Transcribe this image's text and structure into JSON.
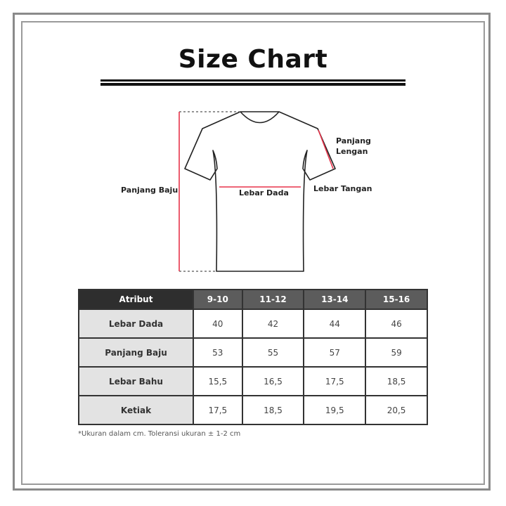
{
  "title": "Size Chart",
  "diagram": {
    "labels": {
      "panjang_baju": "Panjang Baju",
      "lebar_dada": "Lebar Dada",
      "panjang_lengan": "Panjang Lengan",
      "lebar_tangan": "Lebar Tangan"
    },
    "measure_color": "#e8334a"
  },
  "table": {
    "header": [
      "Atribut",
      "9-10",
      "11-12",
      "13-14",
      "15-16"
    ],
    "rows": [
      {
        "label": "Lebar Dada",
        "values": [
          "40",
          "42",
          "44",
          "46"
        ]
      },
      {
        "label": "Panjang Baju",
        "values": [
          "53",
          "55",
          "57",
          "59"
        ]
      },
      {
        "label": "Lebar Bahu",
        "values": [
          "15,5",
          "16,5",
          "17,5",
          "18,5"
        ]
      },
      {
        "label": "Ketiak",
        "values": [
          "17,5",
          "18,5",
          "19,5",
          "20,5"
        ]
      }
    ]
  },
  "note": "*Ukuran dalam cm. Toleransi ukuran ± 1-2 cm"
}
